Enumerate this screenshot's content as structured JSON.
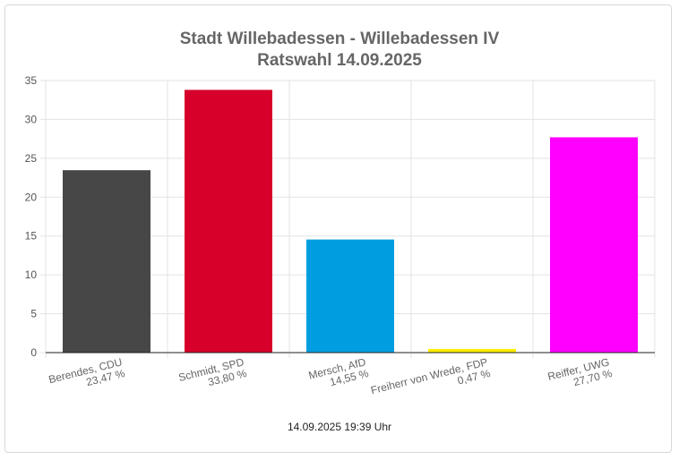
{
  "chart_data": {
    "type": "bar",
    "title": "Stadt Willebadessen - Willebadessen IV",
    "subtitle": "Ratswahl 14.09.2025",
    "categories": [
      "Berendes, CDU",
      "Schmidt, SPD",
      "Mersch, AfD",
      "Freiherr von Wrede, FDP",
      "Reiffer, UWG"
    ],
    "value_labels": [
      "23,47 %",
      "33,80 %",
      "14,55 %",
      "0,47 %",
      "27,70 %"
    ],
    "values": [
      23.47,
      33.8,
      14.55,
      0.47,
      27.7
    ],
    "colors": [
      "#474747",
      "#d6002a",
      "#009ee0",
      "#ffed00",
      "#ff00ff"
    ],
    "ylim": [
      0,
      35
    ],
    "yticks": [
      "0",
      "5",
      "10",
      "15",
      "20",
      "25",
      "30",
      "35"
    ],
    "grid": true,
    "legend": "none"
  },
  "footer": {
    "timestamp": "14.09.2025 19:39 Uhr"
  }
}
